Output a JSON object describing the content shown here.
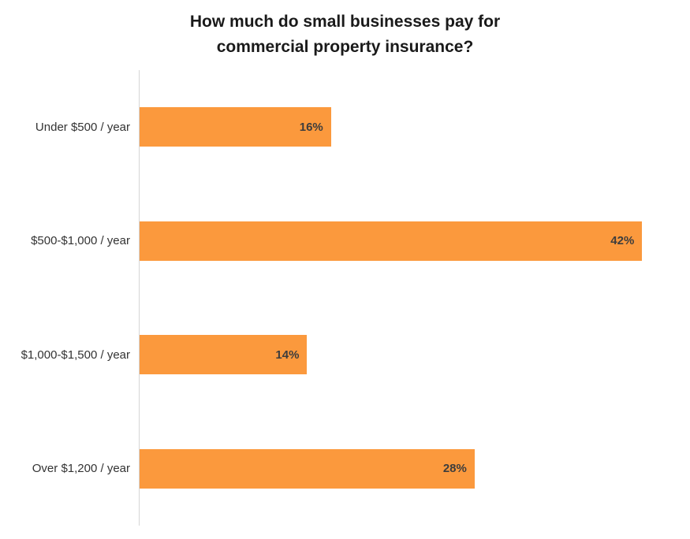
{
  "page": {
    "background": "#ffffff"
  },
  "chart_data": {
    "type": "bar",
    "orientation": "horizontal",
    "title": "How much do small businesses pay for commercial property insurance?",
    "categories": [
      "Under $500 / year",
      "$500-$1,000 / year",
      "$1,000-$1,500 / year",
      "Over $1,200 / year"
    ],
    "values": [
      16,
      42,
      14,
      28
    ],
    "value_labels": [
      "16%",
      "42%",
      "14%",
      "28%"
    ],
    "xlabel": "",
    "ylabel": "",
    "xlim": [
      0,
      46
    ],
    "grid": false,
    "legend": false,
    "value_label_position": "inside-end",
    "colors": {
      "bar": "#FB993D",
      "title": "#1a1a1a",
      "category_label": "#333333",
      "value_label": "#3d3d3d",
      "axis_line": "#d6d6d6"
    }
  }
}
